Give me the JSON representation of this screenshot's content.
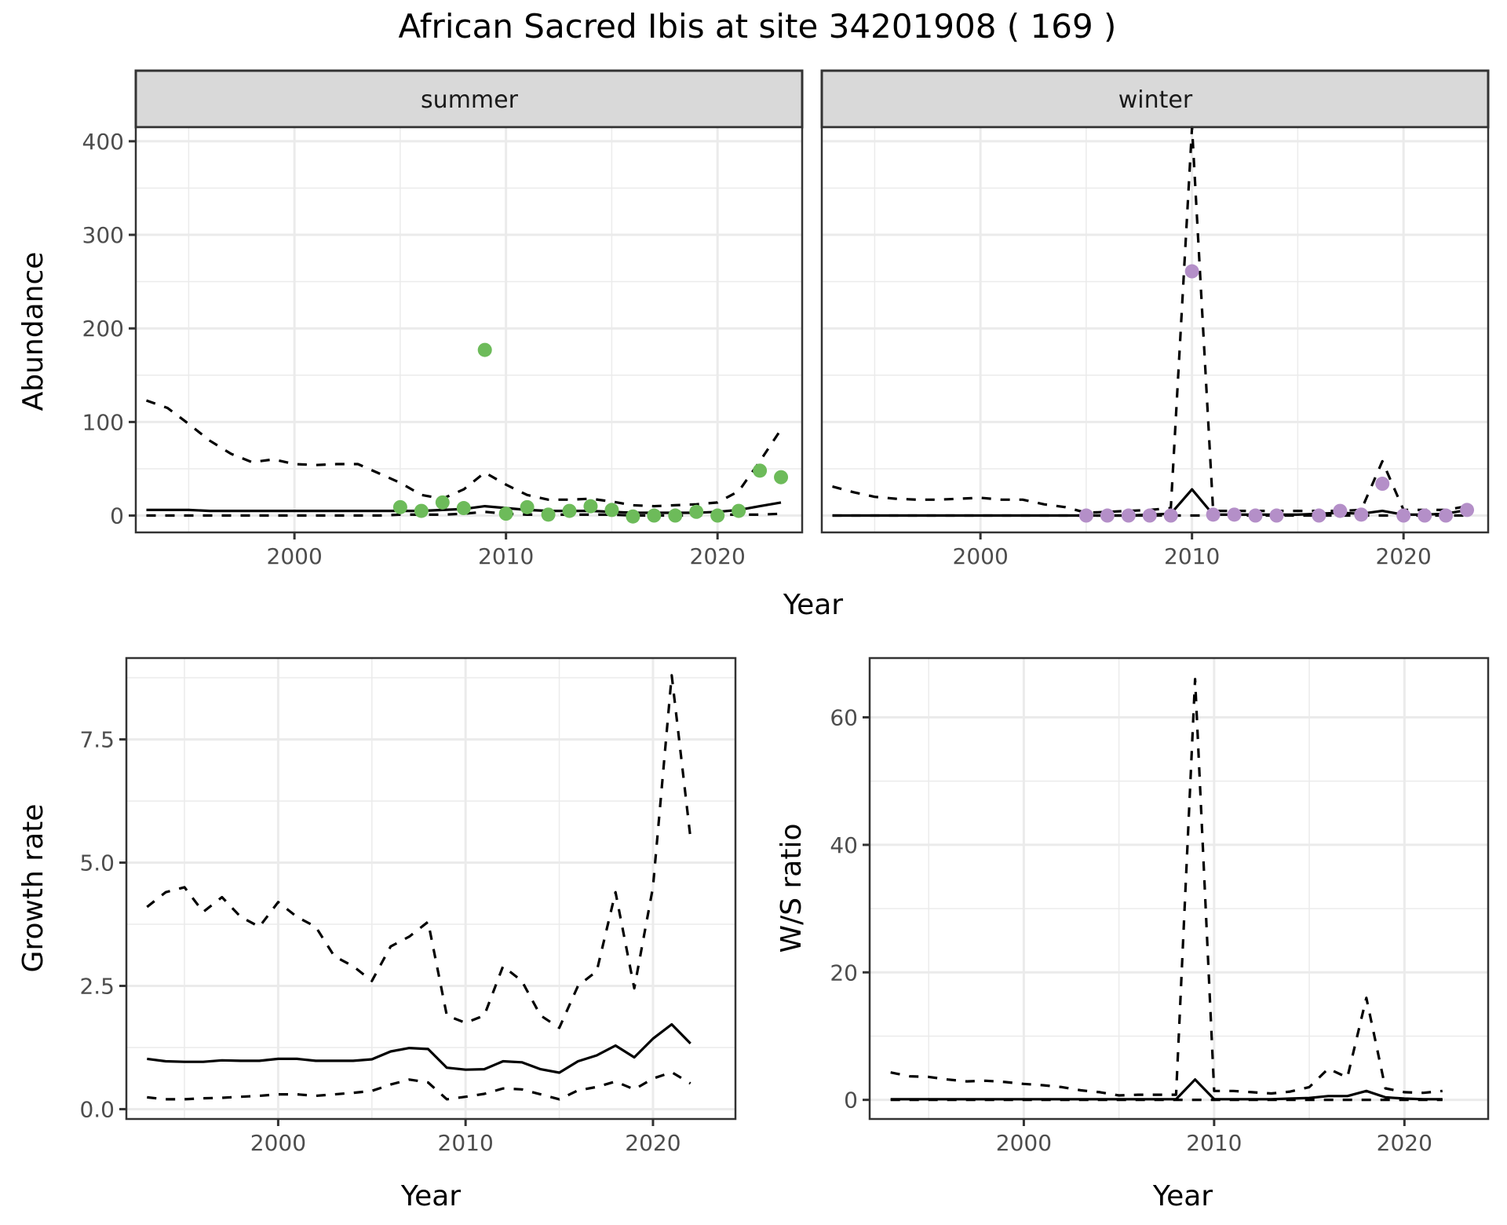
{
  "title": "African Sacred Ibis at site 34201908 ( 169 )",
  "colors": {
    "summer_points": "#6dbb5a",
    "winter_points": "#b48fc8",
    "line": "#000000",
    "strip_bg": "#d9d9d9",
    "grid": "#ebebeb",
    "frame": "#333333"
  },
  "chart_data": [
    {
      "id": "abundance-summer",
      "type": "line",
      "facet": "summer",
      "xlabel": "Year",
      "ylabel": "Abundance",
      "xlim": [
        1992.5,
        2024
      ],
      "ylim": [
        -18,
        415
      ],
      "xticks": [
        2000,
        2010,
        2020
      ],
      "yticks": [
        0,
        100,
        200,
        300,
        400
      ],
      "grid": true,
      "x": [
        1993,
        1994,
        1995,
        1996,
        1997,
        1998,
        1999,
        2000,
        2001,
        2002,
        2003,
        2004,
        2005,
        2006,
        2007,
        2008,
        2009,
        2010,
        2011,
        2012,
        2013,
        2014,
        2015,
        2016,
        2017,
        2018,
        2019,
        2020,
        2021,
        2022,
        2023
      ],
      "series": [
        {
          "name": "estimate",
          "style": "solid",
          "values": [
            6,
            6,
            6,
            5,
            5,
            5,
            5,
            5,
            5,
            5,
            5,
            5,
            5,
            5,
            6,
            7,
            10,
            8,
            6,
            5,
            5,
            5,
            4,
            3,
            3,
            3,
            3,
            4,
            6,
            10,
            14
          ]
        },
        {
          "name": "upper",
          "style": "dashed",
          "values": [
            123,
            115,
            98,
            80,
            66,
            57,
            60,
            55,
            54,
            55,
            55,
            45,
            35,
            22,
            18,
            28,
            46,
            33,
            22,
            17,
            17,
            18,
            15,
            11,
            10,
            11,
            12,
            14,
            26,
            58,
            92
          ]
        },
        {
          "name": "lower",
          "style": "dashed",
          "values": [
            0,
            0,
            0,
            0,
            0,
            0,
            0,
            0,
            0,
            0,
            0,
            0,
            1,
            1,
            1,
            2,
            4,
            2,
            1,
            1,
            1,
            1,
            1,
            0,
            0,
            0,
            0,
            1,
            1,
            1,
            2
          ]
        }
      ],
      "points": {
        "x": [
          2005,
          2006,
          2007,
          2008,
          2009,
          2010,
          2011,
          2012,
          2013,
          2014,
          2015,
          2016,
          2017,
          2018,
          2019,
          2020,
          2021,
          2022,
          2023
        ],
        "y": [
          9,
          5,
          14,
          8,
          177,
          2,
          9,
          1,
          5,
          10,
          6,
          -1,
          0,
          0,
          4,
          0,
          5,
          48,
          41
        ]
      }
    },
    {
      "id": "abundance-winter",
      "type": "line",
      "facet": "winter",
      "xlabel": "Year",
      "ylabel": "",
      "xlim": [
        1992.5,
        2024
      ],
      "ylim": [
        -18,
        415
      ],
      "xticks": [
        2000,
        2010,
        2020
      ],
      "yticks": [
        0,
        100,
        200,
        300,
        400
      ],
      "grid": true,
      "x": [
        1993,
        1994,
        1995,
        1996,
        1997,
        1998,
        1999,
        2000,
        2001,
        2002,
        2003,
        2004,
        2005,
        2006,
        2007,
        2008,
        2009,
        2010,
        2011,
        2012,
        2013,
        2014,
        2015,
        2016,
        2017,
        2018,
        2019,
        2020,
        2021,
        2022,
        2023
      ],
      "series": [
        {
          "name": "estimate",
          "style": "solid",
          "values": [
            0,
            0,
            0,
            0,
            0,
            0,
            0,
            0,
            0,
            0,
            0,
            0,
            0,
            0,
            0,
            1,
            2,
            28,
            1,
            1,
            1,
            1,
            1,
            2,
            3,
            2,
            5,
            1,
            1,
            2,
            6
          ]
        },
        {
          "name": "upper",
          "style": "dashed",
          "values": [
            31,
            25,
            20,
            18,
            17,
            17,
            18,
            19,
            17,
            17,
            12,
            9,
            3,
            4,
            5,
            6,
            8,
            415,
            5,
            5,
            5,
            5,
            5,
            5,
            5,
            6,
            58,
            6,
            6,
            6,
            10
          ]
        },
        {
          "name": "lower",
          "style": "dashed",
          "values": [
            0,
            0,
            0,
            0,
            0,
            0,
            0,
            0,
            0,
            0,
            0,
            0,
            0,
            0,
            0,
            0,
            0,
            0,
            0,
            0,
            0,
            0,
            0,
            0,
            0,
            0,
            0,
            0,
            0,
            0,
            0
          ]
        }
      ],
      "points": {
        "x": [
          2005,
          2006,
          2007,
          2008,
          2009,
          2010,
          2011,
          2012,
          2013,
          2014,
          2016,
          2017,
          2018,
          2019,
          2020,
          2021,
          2022,
          2023
        ],
        "y": [
          0,
          0,
          0,
          0,
          0,
          261,
          1,
          1,
          0,
          0,
          0,
          5,
          1,
          34,
          0,
          0,
          0,
          6
        ]
      }
    },
    {
      "id": "growth-rate",
      "type": "line",
      "xlabel": "Year",
      "ylabel": "Growth rate",
      "xlim": [
        1991.9,
        2024.4
      ],
      "ylim": [
        -0.2,
        9.15
      ],
      "xticks": [
        2000,
        2010,
        2020
      ],
      "yticks": [
        0.0,
        2.5,
        5.0,
        7.5
      ],
      "ytick_labels": [
        "0.0",
        "2.5",
        "5.0",
        "7.5"
      ],
      "grid": true,
      "x": [
        1993,
        1994,
        1995,
        1996,
        1997,
        1998,
        1999,
        2000,
        2001,
        2002,
        2003,
        2004,
        2005,
        2006,
        2007,
        2008,
        2009,
        2010,
        2011,
        2012,
        2013,
        2014,
        2015,
        2016,
        2017,
        2018,
        2019,
        2020,
        2021,
        2022
      ],
      "series": [
        {
          "name": "estimate",
          "style": "solid",
          "values": [
            1.02,
            0.97,
            0.96,
            0.96,
            0.99,
            0.98,
            0.98,
            1.02,
            1.02,
            0.98,
            0.98,
            0.98,
            1.01,
            1.17,
            1.24,
            1.22,
            0.84,
            0.8,
            0.81,
            0.97,
            0.95,
            0.81,
            0.74,
            0.97,
            1.09,
            1.29,
            1.05,
            1.43,
            1.72,
            1.33
          ]
        },
        {
          "name": "upper",
          "style": "dashed",
          "values": [
            4.1,
            4.4,
            4.5,
            4.0,
            4.3,
            3.9,
            3.7,
            4.2,
            3.9,
            3.7,
            3.1,
            2.9,
            2.6,
            3.3,
            3.5,
            3.8,
            1.9,
            1.75,
            1.9,
            2.9,
            2.6,
            1.9,
            1.65,
            2.5,
            2.8,
            4.4,
            2.45,
            4.5,
            8.8,
            5.5
          ]
        },
        {
          "name": "lower",
          "style": "dashed",
          "values": [
            0.24,
            0.2,
            0.2,
            0.22,
            0.23,
            0.25,
            0.27,
            0.3,
            0.3,
            0.27,
            0.3,
            0.33,
            0.37,
            0.5,
            0.6,
            0.54,
            0.2,
            0.25,
            0.31,
            0.42,
            0.4,
            0.3,
            0.2,
            0.38,
            0.45,
            0.56,
            0.4,
            0.62,
            0.75,
            0.52
          ]
        }
      ]
    },
    {
      "id": "ws-ratio",
      "type": "line",
      "xlabel": "Year",
      "ylabel": "W/S ratio",
      "xlim": [
        1991.9,
        2024.4
      ],
      "ylim": [
        -3,
        69.3
      ],
      "xticks": [
        2000,
        2010,
        2020
      ],
      "yticks": [
        0,
        20,
        40,
        60
      ],
      "grid": true,
      "x": [
        1993,
        1994,
        1995,
        1996,
        1997,
        1998,
        1999,
        2000,
        2001,
        2002,
        2003,
        2004,
        2005,
        2006,
        2007,
        2008,
        2009,
        2010,
        2011,
        2012,
        2013,
        2014,
        2015,
        2016,
        2017,
        2018,
        2019,
        2020,
        2021,
        2022
      ],
      "series": [
        {
          "name": "estimate",
          "style": "solid",
          "values": [
            0.1,
            0.1,
            0.1,
            0.1,
            0.1,
            0.1,
            0.1,
            0.1,
            0.1,
            0.1,
            0.1,
            0.1,
            0.1,
            0.1,
            0.1,
            0.1,
            3.2,
            0.1,
            0.1,
            0.1,
            0.1,
            0.2,
            0.3,
            0.6,
            0.6,
            1.4,
            0.4,
            0.2,
            0.1,
            0.1
          ]
        },
        {
          "name": "upper",
          "style": "dashed",
          "values": [
            4.3,
            3.7,
            3.6,
            3.2,
            2.9,
            3.0,
            2.8,
            2.5,
            2.3,
            2.0,
            1.5,
            1.2,
            0.7,
            0.8,
            0.8,
            0.8,
            66,
            1.4,
            1.4,
            1.2,
            1.0,
            1.3,
            2.0,
            4.9,
            3.5,
            16,
            1.8,
            1.2,
            1.1,
            1.4
          ]
        },
        {
          "name": "lower",
          "style": "dashed",
          "values": [
            0,
            0,
            0,
            0,
            0,
            0,
            0,
            0,
            0,
            0,
            0,
            0,
            0,
            0,
            0,
            0,
            0,
            0,
            0,
            0,
            0,
            0,
            0,
            0,
            0,
            0,
            0,
            0,
            0,
            0
          ]
        }
      ]
    }
  ],
  "labels": {
    "strip_summer": "summer",
    "strip_winter": "winter",
    "top_xlabel": "Year",
    "top_ylabel": "Abundance",
    "growth_xlabel": "Year",
    "growth_ylabel": "Growth rate",
    "ws_xlabel": "Year",
    "ws_ylabel": "W/S ratio"
  }
}
